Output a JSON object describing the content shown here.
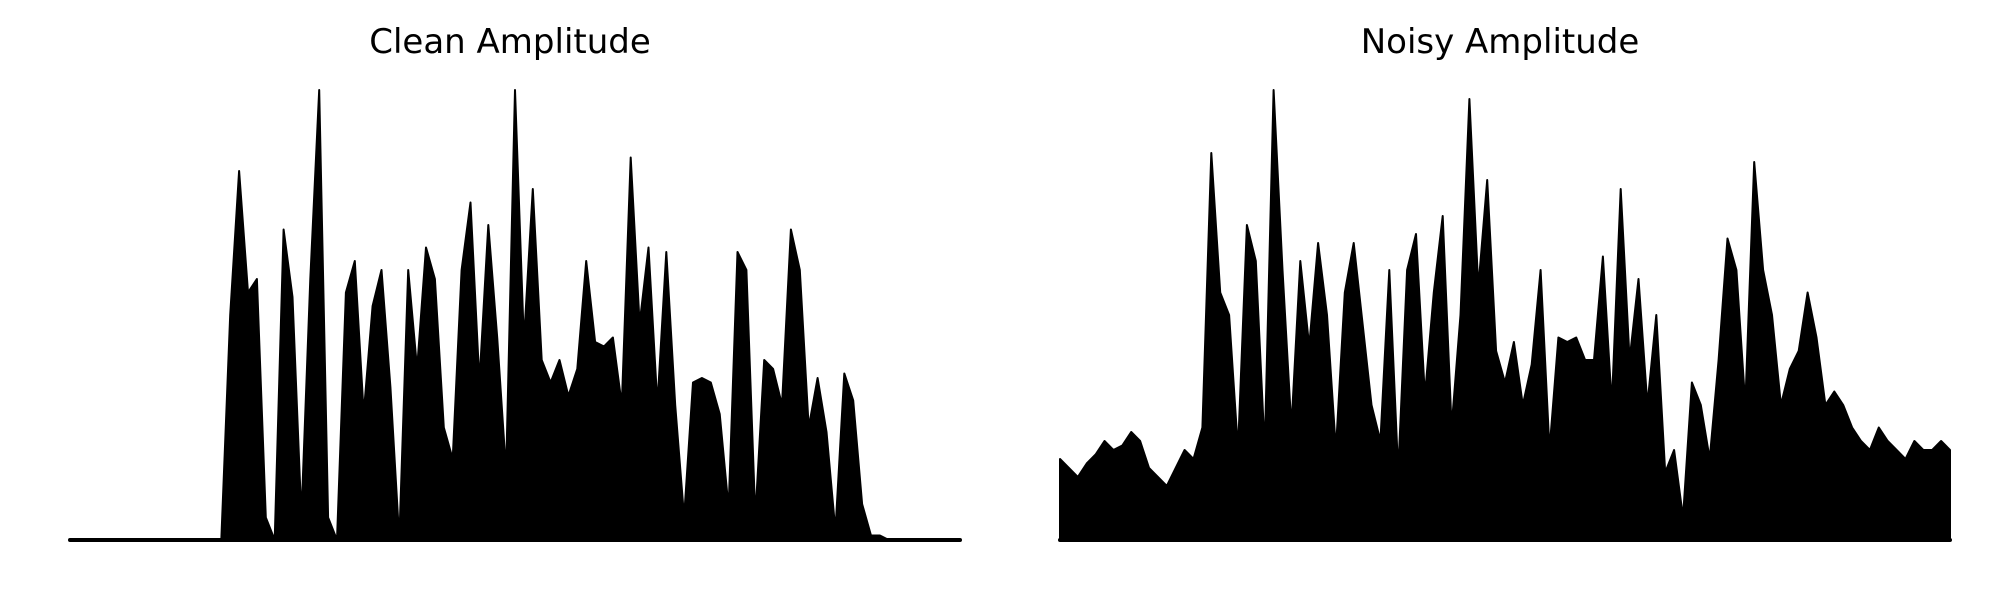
{
  "chart_data": [
    {
      "type": "area",
      "title": "Clean Amplitude",
      "xlabel": "",
      "ylabel": "",
      "axes_visible": false,
      "grid": false,
      "color": "#000000",
      "ylim": [
        0,
        1.0
      ],
      "x": [
        0.0,
        0.01,
        0.02,
        0.03,
        0.04,
        0.05,
        0.06,
        0.07,
        0.08,
        0.09,
        0.1,
        0.11,
        0.12,
        0.13,
        0.14,
        0.15,
        0.16,
        0.17,
        0.18,
        0.19,
        0.2,
        0.21,
        0.22,
        0.23,
        0.24,
        0.25,
        0.26,
        0.27,
        0.28,
        0.29,
        0.3,
        0.31,
        0.32,
        0.33,
        0.34,
        0.35,
        0.36,
        0.37,
        0.38,
        0.39,
        0.4,
        0.41,
        0.42,
        0.43,
        0.44,
        0.45,
        0.46,
        0.47,
        0.48,
        0.49,
        0.5,
        0.51,
        0.52,
        0.53,
        0.54,
        0.55,
        0.56,
        0.57,
        0.58,
        0.59,
        0.6,
        0.61,
        0.62,
        0.63,
        0.64,
        0.65,
        0.66,
        0.67,
        0.68,
        0.69,
        0.7,
        0.71,
        0.72,
        0.73,
        0.74,
        0.75,
        0.76,
        0.77,
        0.78,
        0.79,
        0.8,
        0.81,
        0.82,
        0.83,
        0.84,
        0.85,
        0.86,
        0.87,
        0.88,
        0.89,
        0.9,
        0.91,
        0.92,
        0.93,
        0.94,
        0.95,
        0.96,
        0.97,
        0.98,
        0.99,
        1.0
      ],
      "y": [
        0.0,
        0.0,
        0.0,
        0.0,
        0.0,
        0.0,
        0.0,
        0.0,
        0.0,
        0.0,
        0.0,
        0.0,
        0.0,
        0.0,
        0.0,
        0.0,
        0.0,
        0.0,
        0.5,
        0.82,
        0.55,
        0.58,
        0.05,
        0.0,
        0.69,
        0.54,
        0.05,
        0.58,
        1.0,
        0.05,
        0.0,
        0.55,
        0.62,
        0.28,
        0.52,
        0.6,
        0.34,
        0.0,
        0.6,
        0.38,
        0.65,
        0.58,
        0.25,
        0.18,
        0.6,
        0.75,
        0.35,
        0.7,
        0.45,
        0.15,
        1.0,
        0.44,
        0.78,
        0.4,
        0.35,
        0.4,
        0.32,
        0.38,
        0.62,
        0.44,
        0.43,
        0.45,
        0.3,
        0.85,
        0.48,
        0.65,
        0.3,
        0.64,
        0.3,
        0.05,
        0.35,
        0.36,
        0.35,
        0.28,
        0.07,
        0.64,
        0.6,
        0.05,
        0.4,
        0.38,
        0.3,
        0.69,
        0.6,
        0.25,
        0.36,
        0.24,
        0.02,
        0.37,
        0.31,
        0.08,
        0.01,
        0.01,
        0.0,
        0.0,
        0.0,
        0.0,
        0.0,
        0.0,
        0.0,
        0.0,
        0.0
      ]
    },
    {
      "type": "area",
      "title": "Noisy Amplitude",
      "xlabel": "",
      "ylabel": "",
      "axes_visible": false,
      "grid": false,
      "color": "#000000",
      "ylim": [
        0,
        1.0
      ],
      "x": [
        0.0,
        0.01,
        0.02,
        0.03,
        0.04,
        0.05,
        0.06,
        0.07,
        0.08,
        0.09,
        0.1,
        0.11,
        0.12,
        0.13,
        0.14,
        0.15,
        0.16,
        0.17,
        0.18,
        0.19,
        0.2,
        0.21,
        0.22,
        0.23,
        0.24,
        0.25,
        0.26,
        0.27,
        0.28,
        0.29,
        0.3,
        0.31,
        0.32,
        0.33,
        0.34,
        0.35,
        0.36,
        0.37,
        0.38,
        0.39,
        0.4,
        0.41,
        0.42,
        0.43,
        0.44,
        0.45,
        0.46,
        0.47,
        0.48,
        0.49,
        0.5,
        0.51,
        0.52,
        0.53,
        0.54,
        0.55,
        0.56,
        0.57,
        0.58,
        0.59,
        0.6,
        0.61,
        0.62,
        0.63,
        0.64,
        0.65,
        0.66,
        0.67,
        0.68,
        0.69,
        0.7,
        0.71,
        0.72,
        0.73,
        0.74,
        0.75,
        0.76,
        0.77,
        0.78,
        0.79,
        0.8,
        0.81,
        0.82,
        0.83,
        0.84,
        0.85,
        0.86,
        0.87,
        0.88,
        0.89,
        0.9,
        0.91,
        0.92,
        0.93,
        0.94,
        0.95,
        0.96,
        0.97,
        0.98,
        0.99,
        1.0
      ],
      "y": [
        0.18,
        0.16,
        0.14,
        0.17,
        0.19,
        0.22,
        0.2,
        0.21,
        0.24,
        0.22,
        0.16,
        0.14,
        0.12,
        0.16,
        0.2,
        0.18,
        0.25,
        0.86,
        0.55,
        0.5,
        0.2,
        0.7,
        0.62,
        0.2,
        1.0,
        0.6,
        0.25,
        0.62,
        0.43,
        0.66,
        0.5,
        0.2,
        0.55,
        0.66,
        0.48,
        0.3,
        0.22,
        0.6,
        0.15,
        0.6,
        0.68,
        0.32,
        0.55,
        0.72,
        0.25,
        0.5,
        0.98,
        0.56,
        0.8,
        0.42,
        0.35,
        0.44,
        0.3,
        0.39,
        0.6,
        0.2,
        0.45,
        0.44,
        0.45,
        0.4,
        0.4,
        0.63,
        0.3,
        0.78,
        0.4,
        0.58,
        0.3,
        0.5,
        0.15,
        0.2,
        0.05,
        0.35,
        0.3,
        0.18,
        0.4,
        0.67,
        0.6,
        0.3,
        0.84,
        0.6,
        0.5,
        0.3,
        0.38,
        0.42,
        0.55,
        0.45,
        0.3,
        0.33,
        0.3,
        0.25,
        0.22,
        0.2,
        0.25,
        0.22,
        0.2,
        0.18,
        0.22,
        0.2,
        0.2,
        0.22,
        0.2
      ]
    }
  ]
}
